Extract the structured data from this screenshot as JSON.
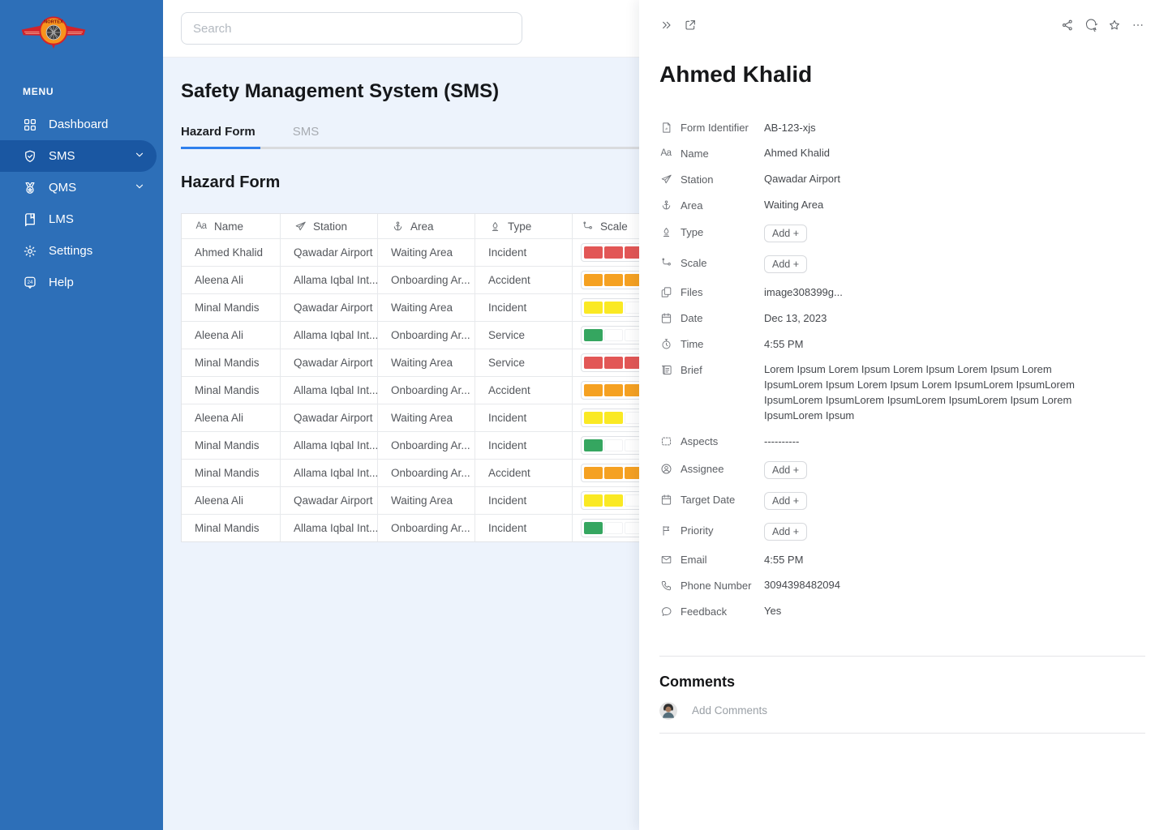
{
  "colors": {
    "sidebar_bg": "#2D6FB8",
    "sidebar_active": "#1A57A2",
    "accent": "#2F80ED",
    "content_bg": "#EDF3FC",
    "scale_green": "#35A660",
    "scale_yellow": "#FAE924",
    "scale_orange": "#F5A122",
    "scale_red": "#E25756"
  },
  "sidebar": {
    "logo_text": "NORTEX",
    "menu_label": "MENU",
    "items": [
      {
        "label": "Dashboard",
        "icon": "dashboard-grid-icon",
        "active": false,
        "chevron": false
      },
      {
        "label": "SMS",
        "icon": "shield-check-icon",
        "active": true,
        "chevron": true
      },
      {
        "label": "QMS",
        "icon": "medal-icon",
        "active": false,
        "chevron": true
      },
      {
        "label": "LMS",
        "icon": "book-icon",
        "active": false,
        "chevron": false
      },
      {
        "label": "Settings",
        "icon": "gear-icon",
        "active": false,
        "chevron": false
      },
      {
        "label": "Help",
        "icon": "help-24-icon",
        "active": false,
        "chevron": false
      }
    ],
    "help_badge_text": "24"
  },
  "topbar": {
    "search_placeholder": "Search"
  },
  "main": {
    "page_title": "Safety Management System (SMS)",
    "tabs": [
      {
        "label": "Hazard Form",
        "active": true
      },
      {
        "label": "SMS",
        "active": false
      }
    ],
    "section_title": "Hazard Form",
    "table": {
      "columns": [
        {
          "label": "Name",
          "icon": "text-aa-icon"
        },
        {
          "label": "Station",
          "icon": "plane-icon"
        },
        {
          "label": "Area",
          "icon": "area-anchor-icon"
        },
        {
          "label": "Type",
          "icon": "type-flame-icon"
        },
        {
          "label": "Scale",
          "icon": "scale-route-icon"
        }
      ],
      "scale_slots": 5,
      "scale_colors": {
        "1": "#35A660",
        "2": "#FAE924",
        "3": "#F5A122",
        "4": "#E25756"
      },
      "rows": [
        {
          "name": "Ahmed Khalid",
          "station": "Qawadar Airport",
          "area": "Waiting Area",
          "type": "Incident",
          "scale": 4
        },
        {
          "name": "Aleena Ali",
          "station": "Allama Iqbal Int...",
          "area": "Onboarding Ar...",
          "type": "Accident",
          "scale": 3
        },
        {
          "name": "Minal Mandis",
          "station": "Qawadar Airport",
          "area": "Waiting Area",
          "type": "Incident",
          "scale": 2
        },
        {
          "name": "Aleena Ali",
          "station": "Allama Iqbal Int...",
          "area": "Onboarding Ar...",
          "type": "Service",
          "scale": 1
        },
        {
          "name": "Minal Mandis",
          "station": "Qawadar Airport",
          "area": "Waiting Area",
          "type": "Service",
          "scale": 4
        },
        {
          "name": "Minal Mandis",
          "station": "Allama Iqbal Int...",
          "area": "Onboarding Ar...",
          "type": "Accident",
          "scale": 3
        },
        {
          "name": "Aleena Ali",
          "station": "Qawadar Airport",
          "area": "Waiting Area",
          "type": "Incident",
          "scale": 2
        },
        {
          "name": "Minal Mandis",
          "station": "Allama Iqbal Int...",
          "area": "Onboarding Ar...",
          "type": "Incident",
          "scale": 1
        },
        {
          "name": "Minal Mandis",
          "station": "Allama Iqbal Int...",
          "area": "Onboarding Ar...",
          "type": "Accident",
          "scale": 3
        },
        {
          "name": "Aleena Ali",
          "station": "Qawadar Airport",
          "area": "Waiting Area",
          "type": "Incident",
          "scale": 2
        },
        {
          "name": "Minal Mandis",
          "station": "Allama Iqbal Int...",
          "area": "Onboarding Ar...",
          "type": "Incident",
          "scale": 1
        }
      ]
    }
  },
  "panel": {
    "title": "Ahmed Khalid",
    "toolbar": {
      "left": [
        "collapse-icon",
        "open-in-new-icon"
      ],
      "right": [
        "share-icon",
        "comment-icon",
        "star-icon",
        "more-icon"
      ]
    },
    "fields": [
      {
        "icon": "form-id-icon",
        "label": "Form Identifier",
        "value": "AB-123-xjs",
        "type": "text"
      },
      {
        "icon": "text-aa-icon",
        "label": "Name",
        "value": "Ahmed Khalid",
        "type": "text"
      },
      {
        "icon": "plane-icon",
        "label": "Station",
        "value": "Qawadar Airport",
        "type": "text"
      },
      {
        "icon": "area-anchor-icon",
        "label": "Area",
        "value": "Waiting Area",
        "type": "text"
      },
      {
        "icon": "type-flame-icon",
        "label": "Type",
        "value": "Add +",
        "type": "add"
      },
      {
        "icon": "scale-route-icon",
        "label": "Scale",
        "value": "Add +",
        "type": "add"
      },
      {
        "icon": "files-icon",
        "label": "Files",
        "value": "image308399g...",
        "type": "text"
      },
      {
        "icon": "calendar-icon",
        "label": "Date",
        "value": "Dec 13, 2023",
        "type": "text"
      },
      {
        "icon": "stopwatch-icon",
        "label": "Time",
        "value": "4:55 PM",
        "type": "text"
      },
      {
        "icon": "brief-scroll-icon",
        "label": "Brief",
        "value": "Lorem Ipsum Lorem Ipsum Lorem Ipsum Lorem Ipsum Lorem IpsumLorem Ipsum Lorem Ipsum Lorem IpsumLorem IpsumLorem IpsumLorem IpsumLorem IpsumLorem IpsumLorem Ipsum Lorem IpsumLorem Ipsum",
        "type": "multiline"
      },
      {
        "icon": "aspects-icon",
        "label": "Aspects",
        "value": "----------",
        "type": "text"
      },
      {
        "icon": "assignee-icon",
        "label": "Assignee",
        "value": "Add +",
        "type": "add"
      },
      {
        "icon": "calendar-icon",
        "label": "Target Date",
        "value": "Add +",
        "type": "add"
      },
      {
        "icon": "flag-icon",
        "label": "Priority",
        "value": "Add +",
        "type": "add"
      },
      {
        "icon": "email-icon",
        "label": "Email",
        "value": "4:55 PM",
        "type": "text"
      },
      {
        "icon": "phone-icon",
        "label": "Phone Number",
        "value": "3094398482094",
        "type": "text"
      },
      {
        "icon": "feedback-icon",
        "label": "Feedback",
        "value": "Yes",
        "type": "text"
      }
    ],
    "comments": {
      "title": "Comments",
      "placeholder": "Add Comments"
    }
  }
}
